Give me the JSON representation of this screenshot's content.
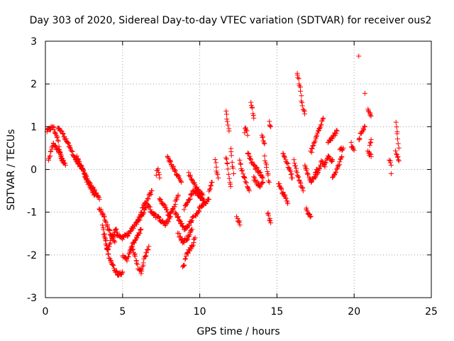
{
  "chart_data": {
    "type": "scatter",
    "title": "Day 303 of 2020, Sidereal Day-to-day VTEC variation (SDTVAR) for receiver ous2",
    "xlabel": "GPS time / hours",
    "ylabel": "SDTVAR / TECUs",
    "xlim": [
      0,
      25
    ],
    "ylim": [
      -3,
      3
    ],
    "xticks": [
      0,
      5,
      10,
      15,
      20,
      25
    ],
    "yticks": [
      -3,
      -2,
      -1,
      0,
      1,
      2,
      3
    ],
    "xtick_labels": [
      "0",
      "5",
      "10",
      "15",
      "20",
      "25"
    ],
    "ytick_labels": [
      "-3",
      "-2",
      "-1",
      "0",
      "1",
      "2",
      "3"
    ],
    "grid": true,
    "marker": "+",
    "color": "#ff0000",
    "segments": [
      {
        "x": [
          0.1,
          0.5,
          0.8,
          1.0,
          1.3
        ],
        "y": [
          0.9,
          1.0,
          0.7,
          0.3,
          0.1
        ]
      },
      {
        "x": [
          0.2,
          0.5,
          0.9,
          1.2
        ],
        "y": [
          0.2,
          0.6,
          0.4,
          0.15
        ]
      },
      {
        "x": [
          0.8,
          1.2,
          1.6,
          2.0,
          2.4,
          2.8,
          3.2,
          3.5
        ],
        "y": [
          1.0,
          0.8,
          0.5,
          0.2,
          0.0,
          -0.3,
          -0.5,
          -0.7
        ]
      },
      {
        "x": [
          2.0,
          2.3,
          2.6,
          2.9,
          3.2
        ],
        "y": [
          0.3,
          0.1,
          -0.2,
          -0.4,
          -0.6
        ]
      },
      {
        "x": [
          3.5,
          3.8,
          4.0,
          4.2,
          4.5
        ],
        "y": [
          -0.9,
          -1.1,
          -1.3,
          -1.5,
          -1.7
        ]
      },
      {
        "x": [
          3.7,
          3.9,
          4.1,
          4.3,
          4.5,
          4.7,
          5.0
        ],
        "y": [
          -1.3,
          -1.7,
          -2.0,
          -2.2,
          -2.35,
          -2.45,
          -2.4
        ]
      },
      {
        "x": [
          3.8,
          4.0,
          4.3,
          4.6
        ],
        "y": [
          -1.5,
          -1.9,
          -1.6,
          -1.4
        ]
      },
      {
        "x": [
          4.6,
          5.0,
          5.4,
          5.8,
          6.2,
          6.5
        ],
        "y": [
          -1.5,
          -1.6,
          -1.5,
          -1.3,
          -1.1,
          -0.9
        ]
      },
      {
        "x": [
          5.0,
          5.3,
          5.6,
          5.9,
          6.2
        ],
        "y": [
          -2.0,
          -2.1,
          -1.8,
          -1.6,
          -1.4
        ]
      },
      {
        "x": [
          5.6,
          5.8,
          6.0,
          6.2,
          6.4,
          6.7
        ],
        "y": [
          -1.8,
          -2.0,
          -2.3,
          -2.4,
          -2.1,
          -1.8
        ]
      },
      {
        "x": [
          6.0,
          6.3,
          6.6,
          6.9
        ],
        "y": [
          -1.2,
          -0.9,
          -0.7,
          -0.5
        ]
      },
      {
        "x": [
          6.6,
          6.9,
          7.2,
          7.5,
          7.8,
          8.1
        ],
        "y": [
          -0.8,
          -1.0,
          -1.1,
          -1.2,
          -1.3,
          -1.1
        ]
      },
      {
        "x": [
          7.2,
          7.3,
          7.4
        ],
        "y": [
          -0.1,
          0.0,
          -0.2
        ]
      },
      {
        "x": [
          7.4,
          7.8,
          8.0,
          8.3,
          8.6
        ],
        "y": [
          -0.7,
          -0.9,
          -1.1,
          -0.9,
          -0.6
        ]
      },
      {
        "x": [
          7.9,
          8.2,
          8.5,
          8.8
        ],
        "y": [
          0.3,
          0.1,
          -0.1,
          -0.3
        ]
      },
      {
        "x": [
          8.4,
          8.7,
          9.0,
          9.3,
          9.6
        ],
        "y": [
          -1.0,
          -1.2,
          -1.4,
          -1.3,
          -1.1
        ]
      },
      {
        "x": [
          8.6,
          8.9,
          9.2,
          9.5
        ],
        "y": [
          -1.5,
          -1.7,
          -1.6,
          -1.4
        ]
      },
      {
        "x": [
          8.9,
          9.0,
          9.1,
          9.3,
          9.5,
          9.7
        ],
        "y": [
          -2.3,
          -2.2,
          -2.0,
          -1.9,
          -1.8,
          -1.6
        ]
      },
      {
        "x": [
          9.0,
          9.3,
          9.6,
          9.9,
          10.2,
          10.4
        ],
        "y": [
          -0.9,
          -0.7,
          -0.5,
          -0.6,
          -0.7,
          -0.8
        ]
      },
      {
        "x": [
          9.3,
          9.6,
          9.9,
          10.2
        ],
        "y": [
          -0.1,
          -0.3,
          -0.5,
          -0.6
        ]
      },
      {
        "x": [
          9.7,
          10.0,
          10.3,
          10.6
        ],
        "y": [
          -1.1,
          -0.9,
          -0.8,
          -0.7
        ]
      },
      {
        "x": [
          10.6,
          10.8
        ],
        "y": [
          -0.5,
          -0.3
        ]
      },
      {
        "x": [
          11.0,
          11.1,
          11.2
        ],
        "y": [
          0.2,
          0.0,
          -0.2
        ]
      },
      {
        "x": [
          11.7,
          11.8,
          11.9,
          12.0
        ],
        "y": [
          0.3,
          0.1,
          -0.2,
          -0.4
        ]
      },
      {
        "x": [
          11.7,
          11.8,
          11.9
        ],
        "y": [
          1.4,
          1.1,
          0.9
        ]
      },
      {
        "x": [
          12.0,
          12.1,
          12.2
        ],
        "y": [
          0.5,
          0.2,
          -0.1
        ]
      },
      {
        "x": [
          12.4,
          12.5,
          12.6
        ],
        "y": [
          -1.1,
          -1.2,
          -1.3
        ]
      },
      {
        "x": [
          12.6,
          12.8,
          13.0,
          13.2
        ],
        "y": [
          0.2,
          -0.1,
          -0.3,
          -0.5
        ]
      },
      {
        "x": [
          12.9,
          13.0,
          13.1
        ],
        "y": [
          0.9,
          1.0,
          0.8
        ]
      },
      {
        "x": [
          13.1,
          13.3,
          13.5,
          13.7,
          13.9,
          14.1
        ],
        "y": [
          0.4,
          0.2,
          0.1,
          0.0,
          -0.1,
          -0.2
        ]
      },
      {
        "x": [
          13.3,
          13.4,
          13.5
        ],
        "y": [
          1.6,
          1.4,
          1.2
        ]
      },
      {
        "x": [
          13.5,
          13.7,
          13.9,
          14.1
        ],
        "y": [
          -0.2,
          -0.3,
          -0.4,
          -0.3
        ]
      },
      {
        "x": [
          14.0,
          14.2
        ],
        "y": [
          0.8,
          0.6
        ]
      },
      {
        "x": [
          14.2,
          14.3,
          14.4,
          14.5
        ],
        "y": [
          0.3,
          0.1,
          -0.1,
          -0.3
        ]
      },
      {
        "x": [
          14.5,
          14.6
        ],
        "y": [
          1.1,
          1.0
        ]
      },
      {
        "x": [
          14.4,
          14.5,
          14.6
        ],
        "y": [
          -1.0,
          -1.15,
          -1.25
        ]
      },
      {
        "x": [
          15.1,
          15.3,
          15.5,
          15.7
        ],
        "y": [
          -0.3,
          -0.5,
          -0.6,
          -0.8
        ]
      },
      {
        "x": [
          15.4,
          15.6,
          15.8,
          16.0
        ],
        "y": [
          0.4,
          0.2,
          0.0,
          -0.2
        ]
      },
      {
        "x": [
          16.1,
          16.3,
          16.5,
          16.7
        ],
        "y": [
          0.2,
          -0.1,
          -0.3,
          -0.5
        ]
      },
      {
        "x": [
          16.3,
          16.4,
          16.5,
          16.6,
          16.7,
          16.8
        ],
        "y": [
          2.25,
          2.1,
          1.9,
          1.6,
          1.4,
          1.3
        ]
      },
      {
        "x": [
          16.9,
          17.0,
          17.1,
          17.2
        ],
        "y": [
          -0.9,
          -1.0,
          -1.05,
          -1.1
        ]
      },
      {
        "x": [
          16.8,
          17.0,
          17.2,
          17.4,
          17.6
        ],
        "y": [
          0.1,
          -0.1,
          -0.3,
          -0.2,
          0.0
        ]
      },
      {
        "x": [
          17.2,
          17.4,
          17.6,
          17.8,
          18.0
        ],
        "y": [
          0.4,
          0.6,
          0.8,
          1.0,
          1.2
        ]
      },
      {
        "x": [
          17.5,
          17.7,
          17.9,
          18.1,
          18.3,
          18.6
        ],
        "y": [
          -0.2,
          0.0,
          0.2,
          0.1,
          0.3,
          0.2
        ]
      },
      {
        "x": [
          18.3,
          18.5,
          18.7,
          18.9
        ],
        "y": [
          0.6,
          0.7,
          0.8,
          0.9
        ]
      },
      {
        "x": [
          18.6,
          18.8,
          19.0,
          19.2
        ],
        "y": [
          -0.2,
          -0.1,
          0.1,
          0.3
        ]
      },
      {
        "x": [
          19.1,
          19.2,
          19.3
        ],
        "y": [
          0.5,
          0.45,
          0.5
        ]
      },
      {
        "x": [
          19.8,
          19.9,
          20.0
        ],
        "y": [
          0.6,
          0.5,
          0.45
        ]
      },
      {
        "x": [
          20.3,
          20.5,
          20.7
        ],
        "y": [
          0.7,
          0.9,
          1.0
        ]
      },
      {
        "x": [
          20.9,
          21.0,
          21.1
        ],
        "y": [
          0.4,
          0.35,
          0.3
        ]
      },
      {
        "x": [
          20.9,
          21.0,
          21.1
        ],
        "y": [
          1.4,
          1.3,
          1.25
        ]
      },
      {
        "x": [
          21.0,
          21.1
        ],
        "y": [
          0.6,
          0.7
        ]
      },
      {
        "x": [
          22.3,
          22.4
        ],
        "y": [
          0.2,
          0.1
        ]
      },
      {
        "x": [
          22.7,
          22.8,
          22.9
        ],
        "y": [
          1.1,
          0.8,
          0.5
        ]
      },
      {
        "x": [
          22.7,
          22.8,
          22.9
        ],
        "y": [
          0.4,
          0.3,
          0.2
        ]
      }
    ],
    "scatter_points": [
      {
        "x": 20.3,
        "y": 2.65
      },
      {
        "x": 20.7,
        "y": 1.78
      },
      {
        "x": 22.4,
        "y": -0.1
      }
    ]
  }
}
